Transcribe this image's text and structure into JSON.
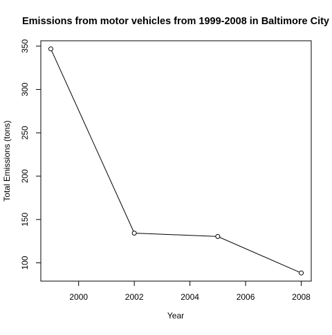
{
  "chart_data": {
    "type": "line",
    "title": "Emissions from motor vehicles from 1999-2008 in Baltimore City",
    "xlabel": "Year",
    "ylabel": "Total Emissions (tons)",
    "x": [
      1999,
      2002,
      2005,
      2008
    ],
    "series": [
      {
        "values": [
          346.8,
          134.3,
          130.4,
          88.3
        ]
      }
    ],
    "xlim": [
      1998.64,
      2008.36
    ],
    "ylim": [
      78.9,
      356.2
    ],
    "xticks": [
      2000,
      2002,
      2004,
      2006,
      2008
    ],
    "yticks": [
      100,
      150,
      200,
      250,
      300,
      350
    ],
    "marker": "open-circle",
    "line_color": "#000000",
    "grid": false,
    "legend": "none"
  }
}
